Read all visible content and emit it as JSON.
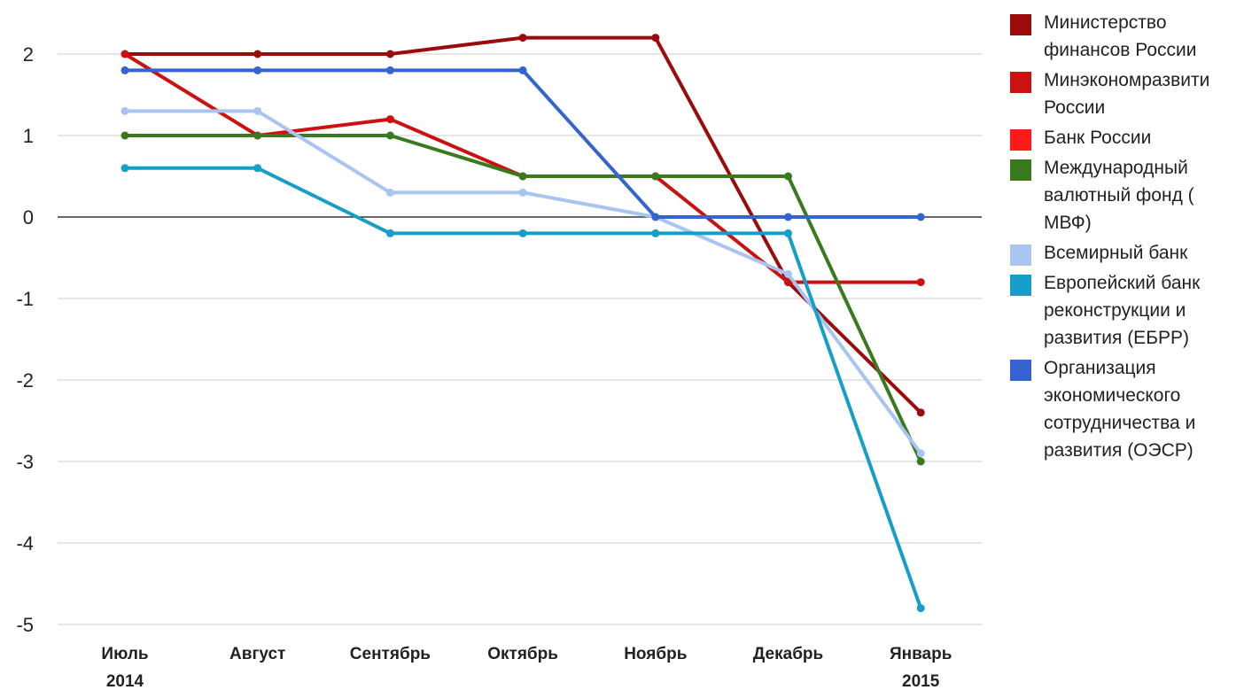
{
  "chart_data": {
    "type": "line",
    "categories": [
      "Июль\n2014",
      "Август",
      "Сентябрь",
      "Октябрь",
      "Ноябрь",
      "Декабрь",
      "Январь\n2015"
    ],
    "ylim": [
      -5,
      2.2
    ],
    "yticks": [
      2,
      1,
      0,
      -1,
      -2,
      -3,
      -4,
      -5
    ],
    "ytick_labels": [
      "2",
      "1",
      "0",
      "-1",
      "-2",
      "-3",
      "-4",
      "-5"
    ],
    "grid": true,
    "legend_position": "right",
    "series": [
      {
        "name": "Министерство\nфинансов России",
        "color": "#9b0b0b",
        "values": [
          2,
          2,
          2,
          2.2,
          2.2,
          -0.8,
          -2.4
        ]
      },
      {
        "name": "Минэкономразвити\nРоссии",
        "color": "#cc1111",
        "values": [
          2,
          1,
          1.2,
          0.5,
          0.5,
          -0.8,
          -0.8
        ]
      },
      {
        "name": "Банк России",
        "color": "#ff1a1a",
        "values": [
          null,
          null,
          null,
          null,
          null,
          null,
          null
        ]
      },
      {
        "name": "Международный\nвалютный фонд (\nМВФ)",
        "color": "#3a7a1e",
        "values": [
          1,
          1,
          1,
          0.5,
          0.5,
          0.5,
          -3
        ]
      },
      {
        "name": "Всемирный банк",
        "color": "#a9c4f0",
        "values": [
          1.3,
          1.3,
          0.3,
          0.3,
          0,
          -0.7,
          -2.9
        ]
      },
      {
        "name": "Европейский банк\nреконструкции и\nразвития (ЕБРР)",
        "color": "#169ec9",
        "values": [
          0.6,
          0.6,
          -0.2,
          -0.2,
          -0.2,
          -0.2,
          -4.8
        ]
      },
      {
        "name": "Организация\nэкономического\nсотрудничества и\nразвития (ОЭСР)",
        "color": "#3563d0",
        "values": [
          1.8,
          1.8,
          1.8,
          1.8,
          0,
          0,
          0
        ]
      }
    ]
  }
}
